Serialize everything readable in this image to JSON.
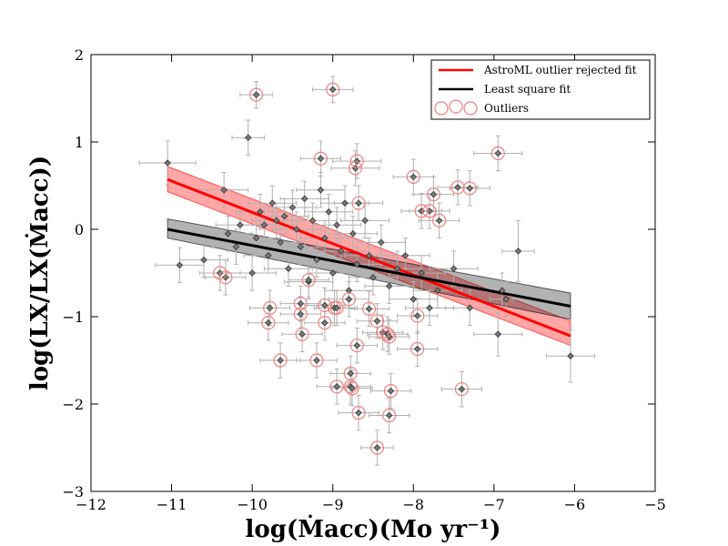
{
  "chart_data": {
    "type": "scatter",
    "xlabel": "log(Ṁacc)(Mo yr⁻¹)",
    "ylabel": "log(LX/LX(Ṁacc))",
    "xlim": [
      -12,
      -5
    ],
    "ylim": [
      -3,
      2
    ],
    "xticks": [
      -12,
      -11,
      -10,
      -9,
      -8,
      -7,
      -6,
      -5
    ],
    "yticks": [
      -3,
      -2,
      -1,
      0,
      1,
      2
    ],
    "xtick_labels": [
      "−12",
      "−11",
      "−10",
      "−9",
      "−8",
      "−7",
      "−6",
      "−5"
    ],
    "ytick_labels": [
      "−3",
      "−2",
      "−1",
      "0",
      "1",
      "2"
    ],
    "legend": {
      "position": "top-right",
      "entries": [
        {
          "label": "AstroML outlier rejected fit",
          "color": "#ff0000",
          "kind": "line"
        },
        {
          "label": "Least square fit",
          "color": "#000000",
          "kind": "line"
        },
        {
          "label": "Outliers",
          "color": "#f08080",
          "kind": "circle"
        }
      ]
    },
    "fits": [
      {
        "name": "AstroML outlier rejected fit",
        "color": "#ff0000",
        "x": [
          -11.05,
          -6.05
        ],
        "y": [
          0.57,
          -1.22
        ],
        "band_lower": [
          0.43,
          -1.33
        ],
        "band_upper": [
          0.72,
          -1.05
        ]
      },
      {
        "name": "Least square fit",
        "color": "#000000",
        "x": [
          -11.05,
          -6.05
        ],
        "y": [
          0.0,
          -0.88
        ],
        "band_lower": [
          -0.1,
          -1.03
        ],
        "band_upper": [
          0.12,
          -0.73
        ]
      }
    ],
    "series": [
      {
        "name": "Data",
        "color": "#505050",
        "points": [
          {
            "x": -11.05,
            "y": 0.76,
            "xerr": 0.35,
            "yerr": 0.25
          },
          {
            "x": -10.9,
            "y": -0.41,
            "xerr": 0.3,
            "yerr": 0.2
          },
          {
            "x": -10.6,
            "y": -0.35,
            "xerr": 0.3,
            "yerr": 0.2
          },
          {
            "x": -10.35,
            "y": 0.45,
            "xerr": 0.3,
            "yerr": 0.2
          },
          {
            "x": -10.3,
            "y": -0.05,
            "xerr": 0.3,
            "yerr": 0.2
          },
          {
            "x": -10.2,
            "y": -0.2,
            "xerr": 0.3,
            "yerr": 0.2
          },
          {
            "x": -10.15,
            "y": 0.05,
            "xerr": 0.3,
            "yerr": 0.2
          },
          {
            "x": -10.05,
            "y": 1.05,
            "xerr": 0.2,
            "yerr": 0.2
          },
          {
            "x": -10.0,
            "y": -0.5,
            "xerr": 0.3,
            "yerr": 0.2
          },
          {
            "x": -9.95,
            "y": -0.1,
            "xerr": 0.3,
            "yerr": 0.2
          },
          {
            "x": -9.9,
            "y": 0.2,
            "xerr": 0.3,
            "yerr": 0.2
          },
          {
            "x": -9.85,
            "y": 0.05,
            "xerr": 0.3,
            "yerr": 0.2
          },
          {
            "x": -9.8,
            "y": -0.3,
            "xerr": 0.3,
            "yerr": 0.2
          },
          {
            "x": -9.75,
            "y": 0.3,
            "xerr": 0.3,
            "yerr": 0.2
          },
          {
            "x": -9.7,
            "y": 0.1,
            "xerr": 0.3,
            "yerr": 0.2
          },
          {
            "x": -9.65,
            "y": -0.15,
            "xerr": 0.3,
            "yerr": 0.2
          },
          {
            "x": -9.6,
            "y": 0.15,
            "xerr": 0.3,
            "yerr": 0.2
          },
          {
            "x": -9.55,
            "y": -0.45,
            "xerr": 0.3,
            "yerr": 0.2
          },
          {
            "x": -9.5,
            "y": 0.25,
            "xerr": 0.3,
            "yerr": 0.2
          },
          {
            "x": -9.45,
            "y": 0.0,
            "xerr": 0.3,
            "yerr": 0.2
          },
          {
            "x": -9.4,
            "y": -0.2,
            "xerr": 0.3,
            "yerr": 0.2
          },
          {
            "x": -9.35,
            "y": 0.35,
            "xerr": 0.3,
            "yerr": 0.2
          },
          {
            "x": -9.3,
            "y": -0.6,
            "xerr": 0.3,
            "yerr": 0.2
          },
          {
            "x": -9.25,
            "y": 0.1,
            "xerr": 0.3,
            "yerr": 0.2
          },
          {
            "x": -9.2,
            "y": -0.35,
            "xerr": 0.3,
            "yerr": 0.2
          },
          {
            "x": -9.15,
            "y": 0.45,
            "xerr": 0.3,
            "yerr": 0.2
          },
          {
            "x": -9.1,
            "y": -0.1,
            "xerr": 0.3,
            "yerr": 0.2
          },
          {
            "x": -9.05,
            "y": 0.2,
            "xerr": 0.3,
            "yerr": 0.2
          },
          {
            "x": -9.0,
            "y": -0.5,
            "xerr": 0.3,
            "yerr": 0.2
          },
          {
            "x": -8.95,
            "y": 0.05,
            "xerr": 0.3,
            "yerr": 0.2
          },
          {
            "x": -8.9,
            "y": -0.25,
            "xerr": 0.3,
            "yerr": 0.2
          },
          {
            "x": -8.85,
            "y": 0.3,
            "xerr": 0.3,
            "yerr": 0.2
          },
          {
            "x": -8.8,
            "y": -0.7,
            "xerr": 0.3,
            "yerr": 0.2
          },
          {
            "x": -8.75,
            "y": -0.05,
            "xerr": 0.3,
            "yerr": 0.2
          },
          {
            "x": -8.7,
            "y": -0.4,
            "xerr": 0.3,
            "yerr": 0.2
          },
          {
            "x": -8.6,
            "y": 0.1,
            "xerr": 0.3,
            "yerr": 0.2
          },
          {
            "x": -8.55,
            "y": -0.3,
            "xerr": 0.3,
            "yerr": 0.2
          },
          {
            "x": -8.5,
            "y": -0.55,
            "xerr": 0.3,
            "yerr": 0.2
          },
          {
            "x": -8.4,
            "y": -0.15,
            "xerr": 0.3,
            "yerr": 0.2
          },
          {
            "x": -8.3,
            "y": -0.65,
            "xerr": 0.3,
            "yerr": 0.2
          },
          {
            "x": -8.2,
            "y": -0.45,
            "xerr": 0.3,
            "yerr": 0.2
          },
          {
            "x": -8.1,
            "y": -0.3,
            "xerr": 0.3,
            "yerr": 0.2
          },
          {
            "x": -8.0,
            "y": -0.8,
            "xerr": 0.3,
            "yerr": 0.2
          },
          {
            "x": -7.9,
            "y": -0.5,
            "xerr": 0.3,
            "yerr": 0.2
          },
          {
            "x": -7.8,
            "y": -0.9,
            "xerr": 0.3,
            "yerr": 0.2
          },
          {
            "x": -7.7,
            "y": -0.7,
            "xerr": 0.3,
            "yerr": 0.2
          },
          {
            "x": -7.5,
            "y": -0.45,
            "xerr": 0.3,
            "yerr": 0.2
          },
          {
            "x": -7.3,
            "y": -0.9,
            "xerr": 0.3,
            "yerr": 0.2
          },
          {
            "x": -6.95,
            "y": -1.2,
            "xerr": 0.3,
            "yerr": 0.25
          },
          {
            "x": -6.9,
            "y": -0.7,
            "xerr": 0.2,
            "yerr": 0.2
          },
          {
            "x": -6.85,
            "y": -0.8,
            "xerr": 0.2,
            "yerr": 0.2
          },
          {
            "x": -6.7,
            "y": -0.25,
            "xerr": 0.2,
            "yerr": 0.35
          },
          {
            "x": -6.05,
            "y": -1.45,
            "xerr": 0.3,
            "yerr": 0.3
          }
        ]
      },
      {
        "name": "Outliers",
        "color": "#f08080",
        "points": [
          {
            "x": -9.95,
            "y": 1.54,
            "xerr": 0.2,
            "yerr": 0.15
          },
          {
            "x": -9.0,
            "y": 1.6,
            "xerr": 0.25,
            "yerr": 0.15
          },
          {
            "x": -9.15,
            "y": 0.81,
            "xerr": 0.25,
            "yerr": 0.2
          },
          {
            "x": -8.7,
            "y": 0.78,
            "xerr": 0.3,
            "yerr": 0.2
          },
          {
            "x": -8.72,
            "y": 0.7,
            "xerr": 0.3,
            "yerr": 0.2
          },
          {
            "x": -8.68,
            "y": 0.3,
            "xerr": 0.3,
            "yerr": 0.2
          },
          {
            "x": -6.95,
            "y": 0.87,
            "xerr": 0.3,
            "yerr": 0.2
          },
          {
            "x": -8.0,
            "y": 0.6,
            "xerr": 0.25,
            "yerr": 0.2
          },
          {
            "x": -7.75,
            "y": 0.4,
            "xerr": 0.25,
            "yerr": 0.2
          },
          {
            "x": -7.45,
            "y": 0.48,
            "xerr": 0.25,
            "yerr": 0.2
          },
          {
            "x": -7.3,
            "y": 0.47,
            "xerr": 0.25,
            "yerr": 0.2
          },
          {
            "x": -7.9,
            "y": 0.21,
            "xerr": 0.25,
            "yerr": 0.2
          },
          {
            "x": -7.8,
            "y": 0.21,
            "xerr": 0.25,
            "yerr": 0.2
          },
          {
            "x": -7.68,
            "y": 0.1,
            "xerr": 0.25,
            "yerr": 0.2
          },
          {
            "x": -10.4,
            "y": -0.5,
            "xerr": 0.25,
            "yerr": 0.2
          },
          {
            "x": -10.33,
            "y": -0.55,
            "xerr": 0.25,
            "yerr": 0.2
          },
          {
            "x": -9.78,
            "y": -0.9,
            "xerr": 0.25,
            "yerr": 0.2
          },
          {
            "x": -9.8,
            "y": -1.07,
            "xerr": 0.25,
            "yerr": 0.2
          },
          {
            "x": -9.65,
            "y": -1.5,
            "xerr": 0.25,
            "yerr": 0.2
          },
          {
            "x": -9.4,
            "y": -0.85,
            "xerr": 0.25,
            "yerr": 0.2
          },
          {
            "x": -9.4,
            "y": -0.97,
            "xerr": 0.25,
            "yerr": 0.2
          },
          {
            "x": -9.38,
            "y": -1.2,
            "xerr": 0.25,
            "yerr": 0.2
          },
          {
            "x": -9.3,
            "y": -0.58,
            "xerr": 0.25,
            "yerr": 0.2
          },
          {
            "x": -9.1,
            "y": -0.87,
            "xerr": 0.25,
            "yerr": 0.2
          },
          {
            "x": -9.1,
            "y": -1.07,
            "xerr": 0.25,
            "yerr": 0.2
          },
          {
            "x": -8.98,
            "y": -0.9,
            "xerr": 0.25,
            "yerr": 0.2
          },
          {
            "x": -8.95,
            "y": -0.9,
            "xerr": 0.25,
            "yerr": 0.2
          },
          {
            "x": -9.2,
            "y": -1.5,
            "xerr": 0.25,
            "yerr": 0.2
          },
          {
            "x": -8.95,
            "y": -1.8,
            "xerr": 0.25,
            "yerr": 0.2
          },
          {
            "x": -8.8,
            "y": -0.8,
            "xerr": 0.25,
            "yerr": 0.2
          },
          {
            "x": -8.78,
            "y": -1.65,
            "xerr": 0.25,
            "yerr": 0.2
          },
          {
            "x": -8.78,
            "y": -1.8,
            "xerr": 0.25,
            "yerr": 0.2
          },
          {
            "x": -8.76,
            "y": -1.82,
            "xerr": 0.25,
            "yerr": 0.2
          },
          {
            "x": -8.7,
            "y": -1.33,
            "xerr": 0.25,
            "yerr": 0.2
          },
          {
            "x": -8.68,
            "y": -2.1,
            "xerr": 0.25,
            "yerr": 0.2
          },
          {
            "x": -8.55,
            "y": -0.91,
            "xerr": 0.25,
            "yerr": 0.2
          },
          {
            "x": -8.45,
            "y": -1.05,
            "xerr": 0.25,
            "yerr": 0.2
          },
          {
            "x": -8.45,
            "y": -2.5,
            "xerr": 0.2,
            "yerr": 0.2
          },
          {
            "x": -8.38,
            "y": -1.18,
            "xerr": 0.25,
            "yerr": 0.2
          },
          {
            "x": -8.32,
            "y": -1.2,
            "xerr": 0.25,
            "yerr": 0.2
          },
          {
            "x": -8.3,
            "y": -1.23,
            "xerr": 0.25,
            "yerr": 0.2
          },
          {
            "x": -8.28,
            "y": -1.85,
            "xerr": 0.25,
            "yerr": 0.2
          },
          {
            "x": -8.3,
            "y": -2.13,
            "xerr": 0.25,
            "yerr": 0.2
          },
          {
            "x": -7.95,
            "y": -0.99,
            "xerr": 0.25,
            "yerr": 0.2
          },
          {
            "x": -7.95,
            "y": -1.37,
            "xerr": 0.25,
            "yerr": 0.2
          },
          {
            "x": -7.4,
            "y": -1.83,
            "xerr": 0.25,
            "yerr": 0.2
          }
        ]
      }
    ]
  }
}
